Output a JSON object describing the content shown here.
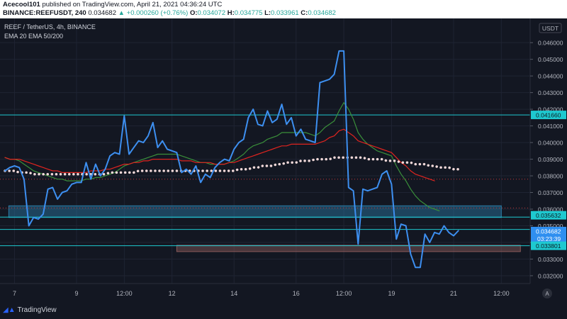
{
  "header": {
    "author": "Acecool101",
    "published_text": "published on TradingView.com, April 21, 2021 04:36:24 UTC",
    "symbol": "BINANCE:REEFUSDT, 240",
    "last": "0.034682",
    "change": "▲ +0.000260 (+0.76%)",
    "o_label": "O:",
    "o_value": "0.034072",
    "h_label": "H:",
    "h_value": "0.034775",
    "l_label": "L:",
    "l_value": "0.033961",
    "c_label": "C:",
    "c_value": "0.034682"
  },
  "legend": {
    "line1": "REEF / TetherUS, 4h, BINANCE",
    "line2": "EMA 20 EMA 50/200"
  },
  "footer": {
    "brand": "TradingView"
  },
  "colors": {
    "price": "#3d8ff0",
    "ema20": "#3a8f3a",
    "ema50": "#e0241f",
    "ema200": "#f0d8d8",
    "hline": "#1ec9d0",
    "support_zone": "#2a7da8",
    "low_zone": "#8a5a5a",
    "label_cyan": "#1ec9d0",
    "label_current": "#2f8ff0",
    "axis_text": "#b2b5be"
  },
  "chart_data": {
    "type": "line",
    "title": "REEF / TetherUS, 4h, BINANCE",
    "currency": "USDT",
    "ylim": [
      0.0317,
      0.0472
    ],
    "y_ticks": [
      "0.046000",
      "0.045000",
      "0.044000",
      "0.043000",
      "0.042000",
      "0.041000",
      "0.040000",
      "0.039000",
      "0.038000",
      "0.037000",
      "0.036000",
      "0.035000",
      "0.034000",
      "0.033000",
      "0.032000"
    ],
    "x_tick_labels": [
      "7",
      "9",
      "12:00",
      "12",
      "14",
      "16",
      "12:00",
      "19",
      "21",
      "12:00"
    ],
    "x_tick_index": [
      2,
      15,
      25,
      35,
      48,
      61,
      71,
      81,
      94,
      104
    ],
    "series": [
      {
        "key": "price",
        "values": [
          0.0383,
          0.0385,
          0.0386,
          0.0385,
          0.0378,
          0.035,
          0.0355,
          0.0354,
          0.0357,
          0.0372,
          0.0373,
          0.0366,
          0.037,
          0.0371,
          0.0375,
          0.0376,
          0.0376,
          0.0388,
          0.0378,
          0.0387,
          0.038,
          0.0384,
          0.0392,
          0.0394,
          0.0393,
          0.0416,
          0.0393,
          0.0397,
          0.0401,
          0.04,
          0.0404,
          0.0412,
          0.0397,
          0.0401,
          0.0396,
          0.0395,
          0.0394,
          0.0382,
          0.0384,
          0.0381,
          0.0386,
          0.0376,
          0.0381,
          0.0379,
          0.0385,
          0.0388,
          0.039,
          0.0389,
          0.0396,
          0.04,
          0.0402,
          0.0415,
          0.042,
          0.0411,
          0.041,
          0.0419,
          0.0412,
          0.0414,
          0.0423,
          0.0411,
          0.0415,
          0.0404,
          0.0408,
          0.0402,
          0.0401,
          0.04,
          0.0436,
          0.0437,
          0.0438,
          0.0441,
          0.0455,
          0.0455,
          0.0373,
          0.0371,
          0.0339,
          0.0372,
          0.0371,
          0.0372,
          0.0373,
          0.0381,
          0.0383,
          0.0375,
          0.0342,
          0.0351,
          0.035,
          0.0333,
          0.0325,
          0.0325,
          0.0345,
          0.034,
          0.0346,
          0.0345,
          0.035,
          0.0346,
          0.0344,
          0.0347
        ]
      },
      {
        "key": "ema20",
        "values": [
          0.0391,
          0.039,
          0.039,
          0.0389,
          0.0387,
          0.0385,
          0.0383,
          0.0382,
          0.0381,
          0.038,
          0.0379,
          0.0378,
          0.0378,
          0.0377,
          0.0377,
          0.0377,
          0.0377,
          0.0378,
          0.0378,
          0.0379,
          0.0379,
          0.038,
          0.0381,
          0.0382,
          0.0384,
          0.0386,
          0.0387,
          0.0388,
          0.0389,
          0.039,
          0.0391,
          0.0392,
          0.0393,
          0.0393,
          0.0393,
          0.0393,
          0.0393,
          0.0392,
          0.0391,
          0.039,
          0.0389,
          0.0388,
          0.0388,
          0.0387,
          0.0387,
          0.0387,
          0.0387,
          0.0388,
          0.0389,
          0.0391,
          0.0393,
          0.0396,
          0.0398,
          0.0399,
          0.04,
          0.0402,
          0.0403,
          0.0404,
          0.0406,
          0.0406,
          0.0406,
          0.0406,
          0.0406,
          0.0406,
          0.0405,
          0.0404,
          0.0406,
          0.0409,
          0.0411,
          0.0413,
          0.0419,
          0.0424,
          0.042,
          0.0414,
          0.0406,
          0.0402,
          0.0399,
          0.0397,
          0.0395,
          0.0394,
          0.0393,
          0.0392,
          0.0386,
          0.0381,
          0.0377,
          0.0372,
          0.0368,
          0.0365,
          0.0363,
          0.0361,
          0.036,
          0.0359
        ]
      },
      {
        "key": "ema50",
        "values": [
          0.0391,
          0.039,
          0.039,
          0.039,
          0.0389,
          0.0388,
          0.0387,
          0.0386,
          0.0385,
          0.0384,
          0.0383,
          0.0383,
          0.0382,
          0.0382,
          0.0382,
          0.0382,
          0.0382,
          0.0382,
          0.0383,
          0.0383,
          0.0383,
          0.0384,
          0.0384,
          0.0385,
          0.0386,
          0.0387,
          0.0387,
          0.0388,
          0.0388,
          0.0389,
          0.0389,
          0.039,
          0.039,
          0.039,
          0.039,
          0.039,
          0.039,
          0.0389,
          0.0389,
          0.0389,
          0.0388,
          0.0388,
          0.0388,
          0.0388,
          0.0387,
          0.0387,
          0.0387,
          0.0388,
          0.0388,
          0.0389,
          0.039,
          0.0391,
          0.0392,
          0.0393,
          0.0394,
          0.0395,
          0.0396,
          0.0397,
          0.0398,
          0.0398,
          0.0399,
          0.0399,
          0.0399,
          0.0399,
          0.0399,
          0.0399,
          0.04,
          0.0401,
          0.0403,
          0.0404,
          0.0407,
          0.0408,
          0.0406,
          0.0404,
          0.0401,
          0.04,
          0.0399,
          0.0398,
          0.0397,
          0.0396,
          0.0395,
          0.0394,
          0.0391,
          0.0388,
          0.0386,
          0.0383,
          0.0381,
          0.038,
          0.0379,
          0.0378,
          0.0377
        ]
      },
      {
        "key": "ema200",
        "values": [
          0.0383,
          0.0383,
          0.0383,
          0.0382,
          0.0382,
          0.0382,
          0.0381,
          0.0381,
          0.0381,
          0.0381,
          0.0381,
          0.0381,
          0.0381,
          0.0381,
          0.0381,
          0.0381,
          0.0381,
          0.0381,
          0.0381,
          0.0381,
          0.0381,
          0.0381,
          0.0382,
          0.0382,
          0.0382,
          0.0382,
          0.0382,
          0.0382,
          0.0383,
          0.0383,
          0.0383,
          0.0383,
          0.0383,
          0.0383,
          0.0383,
          0.0383,
          0.0383,
          0.0383,
          0.0383,
          0.0383,
          0.0383,
          0.0383,
          0.0383,
          0.0383,
          0.0383,
          0.0383,
          0.0383,
          0.0383,
          0.0383,
          0.0384,
          0.0384,
          0.0384,
          0.0385,
          0.0385,
          0.0386,
          0.0386,
          0.0386,
          0.0387,
          0.0387,
          0.0388,
          0.0388,
          0.0388,
          0.0389,
          0.0389,
          0.0389,
          0.039,
          0.039,
          0.039,
          0.039,
          0.0391,
          0.0391,
          0.0391,
          0.0391,
          0.0391,
          0.0391,
          0.0391,
          0.039,
          0.039,
          0.039,
          0.039,
          0.0389,
          0.0389,
          0.0389,
          0.0388,
          0.0388,
          0.0388,
          0.0387,
          0.0387,
          0.0387,
          0.0386,
          0.0386,
          0.0385,
          0.0385,
          0.0385,
          0.0384,
          0.0384
        ]
      }
    ],
    "hlines": [
      {
        "value": 0.04166,
        "label": "0.041660"
      },
      {
        "value": 0.0338,
        "label": "0.033801"
      },
      {
        "value": 0.03552,
        "label": ""
      },
      {
        "value": 0.03478,
        "label": ""
      }
    ],
    "dotted_lines": [
      0.0378,
      0.03607
    ],
    "zones": [
      {
        "key": "support",
        "y1": 0.0362,
        "y2": 0.0355,
        "x_from": 0.8,
        "x_to": 104.0
      },
      {
        "key": "low",
        "y1": 0.03383,
        "y2": 0.03345,
        "x_from": 36.0,
        "x_to": 108.0
      }
    ],
    "price_labels": [
      {
        "value": 0.04166,
        "text": "0.041660",
        "style": "cyan"
      },
      {
        "value": 0.035632,
        "text": "0.035632",
        "style": "cyan"
      },
      {
        "value": 0.034682,
        "text": "0.034682",
        "style": "current"
      },
      {
        "value": 0.033801,
        "text": "0.033801",
        "style": "cyan"
      }
    ],
    "countdown": "03:23:39",
    "axis_unit_badge": "USDT",
    "axis_letter": "A"
  }
}
